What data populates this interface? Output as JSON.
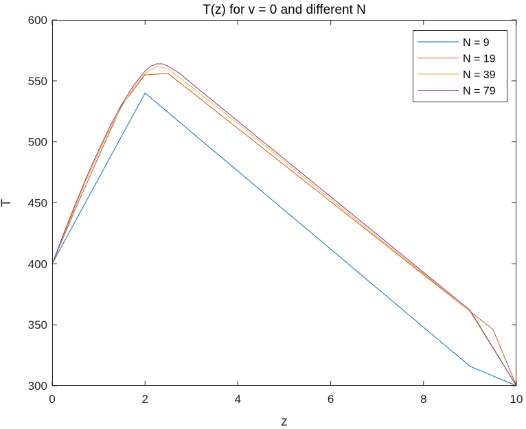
{
  "chart_data": {
    "type": "line",
    "title": "T(z) for v = 0 and different N",
    "xlabel": "z",
    "ylabel": "T",
    "xlim": [
      0,
      10
    ],
    "ylim": [
      300,
      600
    ],
    "xticks": [
      0,
      2,
      4,
      6,
      8,
      10
    ],
    "yticks": [
      300,
      350,
      400,
      450,
      500,
      550,
      600
    ],
    "xtick_labels": [
      "0",
      "2",
      "4",
      "6",
      "8",
      "10"
    ],
    "ytick_labels": [
      "300",
      "350",
      "400",
      "450",
      "500",
      "550",
      "600"
    ],
    "grid": false,
    "box": true,
    "legend_position": "top-right",
    "series": [
      {
        "name": "N = 9",
        "color": "#0072BD",
        "x": [
          0,
          1,
          2,
          3,
          4,
          5,
          6,
          7,
          8,
          9,
          10
        ],
        "y": [
          400,
          470,
          540,
          508,
          476,
          444,
          412,
          380,
          348,
          316,
          300
        ]
      },
      {
        "name": "N = 19",
        "color": "#D95319",
        "x": [
          0,
          0.5,
          1,
          1.5,
          2,
          2.5,
          3,
          4,
          5,
          6,
          7,
          8,
          9,
          9.5,
          10
        ],
        "y": [
          400,
          445,
          488,
          530,
          555,
          556,
          541,
          511,
          481,
          451,
          421,
          391,
          361,
          346,
          300
        ]
      },
      {
        "name": "N = 39",
        "color": "#EDB120",
        "x": [
          0,
          0.25,
          0.5,
          0.75,
          1,
          1.25,
          1.5,
          1.75,
          2,
          2.25,
          2.5,
          3,
          4,
          5,
          6,
          7,
          8,
          9,
          10
        ],
        "y": [
          400,
          424,
          447,
          470,
          491,
          511,
          529,
          544,
          556,
          562,
          560,
          545,
          515,
          484,
          453,
          422,
          392,
          361,
          300
        ]
      },
      {
        "name": "N = 79",
        "color": "#7E2F8E",
        "x": [
          0,
          0.25,
          0.5,
          0.75,
          1,
          1.25,
          1.5,
          1.75,
          2,
          2.125,
          2.25,
          2.375,
          2.5,
          2.75,
          3,
          4,
          5,
          6,
          7,
          8,
          9,
          10
        ],
        "y": [
          400,
          425,
          449,
          472,
          493,
          513,
          531,
          546,
          558,
          562,
          564,
          564,
          562,
          556,
          548,
          517,
          486,
          455,
          424,
          393,
          362,
          300
        ]
      }
    ]
  }
}
